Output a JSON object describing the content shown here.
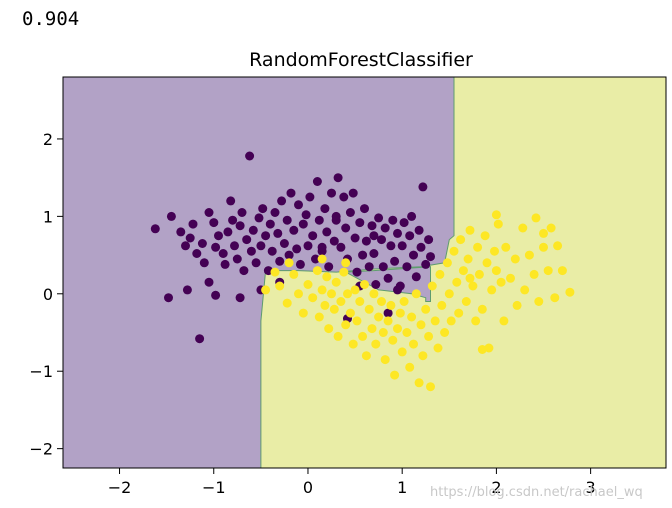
{
  "output": {
    "score_text": "0.904"
  },
  "watermark": "https://blog.csdn.net/rachael_wq",
  "chart_data": {
    "type": "scatter",
    "title": "RandomForestClassifier",
    "xlabel": "",
    "ylabel": "",
    "xlim": [
      -2.6,
      3.8
    ],
    "ylim": [
      -2.25,
      2.8
    ],
    "xticks": [
      -2,
      -1,
      0,
      1,
      2,
      3
    ],
    "yticks": [
      -2,
      -1,
      0,
      1,
      2
    ],
    "xtick_labels": [
      "−2",
      "−1",
      "0",
      "1",
      "2",
      "3"
    ],
    "ytick_labels": [
      "−2",
      "−1",
      "0",
      "1",
      "2"
    ],
    "grid": false,
    "colors": {
      "class_0_region": "#b2a2c6",
      "class_1_region": "#e9eda6",
      "boundary": "#5e9c6e",
      "class_0_point": "#440154",
      "class_1_point": "#fde725"
    },
    "decision_regions": {
      "class_1_polygon": [
        [
          -0.5,
          -2.25
        ],
        [
          -0.5,
          -0.35
        ],
        [
          -0.45,
          0.3
        ],
        [
          -0.1,
          0.3
        ],
        [
          0.3,
          0.28
        ],
        [
          0.5,
          0.3
        ],
        [
          0.7,
          0.32
        ],
        [
          1.2,
          0.35
        ],
        [
          1.45,
          0.4
        ],
        [
          1.5,
          0.7
        ],
        [
          1.55,
          0.75
        ],
        [
          1.55,
          2.8
        ],
        [
          3.8,
          2.8
        ],
        [
          3.8,
          -2.25
        ]
      ],
      "class_0_notch": [
        [
          0.4,
          0.28
        ],
        [
          0.6,
          0.15
        ],
        [
          0.75,
          0.05
        ],
        [
          1.1,
          0.0
        ],
        [
          1.25,
          -0.05
        ],
        [
          1.25,
          -0.1
        ],
        [
          1.3,
          -0.1
        ],
        [
          1.3,
          0.35
        ],
        [
          0.7,
          0.3
        ]
      ]
    },
    "series": [
      {
        "class": 0,
        "points": [
          [
            -1.62,
            0.84
          ],
          [
            -1.45,
            1.0
          ],
          [
            -1.35,
            0.8
          ],
          [
            -1.3,
            0.62
          ],
          [
            -1.25,
            0.72
          ],
          [
            -1.22,
            0.9
          ],
          [
            -1.18,
            0.52
          ],
          [
            -1.12,
            0.65
          ],
          [
            -1.1,
            0.4
          ],
          [
            -1.05,
            1.05
          ],
          [
            -1.0,
            0.92
          ],
          [
            -0.98,
            0.6
          ],
          [
            -0.95,
            0.75
          ],
          [
            -0.9,
            0.52
          ],
          [
            -0.88,
            0.38
          ],
          [
            -0.85,
            0.8
          ],
          [
            -0.82,
            1.2
          ],
          [
            -0.8,
            0.95
          ],
          [
            -0.78,
            0.62
          ],
          [
            -0.75,
            0.45
          ],
          [
            -0.72,
            0.88
          ],
          [
            -0.7,
            1.05
          ],
          [
            -0.68,
            0.3
          ],
          [
            -0.65,
            0.7
          ],
          [
            -0.62,
            1.78
          ],
          [
            -0.6,
            0.55
          ],
          [
            -0.58,
            0.82
          ],
          [
            -0.55,
            0.4
          ],
          [
            -0.52,
            0.98
          ],
          [
            -0.5,
            0.62
          ],
          [
            -0.48,
            1.1
          ],
          [
            -0.45,
            0.75
          ],
          [
            -0.42,
            0.3
          ],
          [
            -0.4,
            0.9
          ],
          [
            -0.38,
            0.55
          ],
          [
            -0.35,
            1.05
          ],
          [
            -0.32,
            0.78
          ],
          [
            -0.3,
            0.42
          ],
          [
            -0.28,
            1.2
          ],
          [
            -0.25,
            0.65
          ],
          [
            -0.22,
            0.95
          ],
          [
            -0.2,
            0.5
          ],
          [
            -0.18,
            1.3
          ],
          [
            -0.15,
            0.82
          ],
          [
            -0.12,
            0.58
          ],
          [
            -0.1,
            1.15
          ],
          [
            -0.08,
            0.38
          ],
          [
            -0.05,
            0.9
          ],
          [
            -0.02,
            1.02
          ],
          [
            0.0,
            0.62
          ],
          [
            0.02,
            1.25
          ],
          [
            0.05,
            0.75
          ],
          [
            0.08,
            0.45
          ],
          [
            0.1,
            1.45
          ],
          [
            0.12,
            0.95
          ],
          [
            0.15,
            0.55
          ],
          [
            0.18,
            1.1
          ],
          [
            0.2,
            0.8
          ],
          [
            0.22,
            0.35
          ],
          [
            0.25,
            1.3
          ],
          [
            0.28,
            0.68
          ],
          [
            0.3,
            0.95
          ],
          [
            0.32,
            1.5
          ],
          [
            0.35,
            0.6
          ],
          [
            0.38,
            1.25
          ],
          [
            0.4,
            0.85
          ],
          [
            0.42,
            0.45
          ],
          [
            0.45,
            1.05
          ],
          [
            0.48,
            1.3
          ],
          [
            0.5,
            0.72
          ],
          [
            0.52,
            0.28
          ],
          [
            0.55,
            0.92
          ],
          [
            0.58,
            0.5
          ],
          [
            0.6,
            1.1
          ],
          [
            0.62,
            0.68
          ],
          [
            0.65,
            0.35
          ],
          [
            0.68,
            0.88
          ],
          [
            0.7,
            0.52
          ],
          [
            0.72,
            0.12
          ],
          [
            0.75,
            0.98
          ],
          [
            0.78,
            0.7
          ],
          [
            0.8,
            0.35
          ],
          [
            0.82,
            0.85
          ],
          [
            0.85,
            0.2
          ],
          [
            0.88,
            0.62
          ],
          [
            0.9,
            0.95
          ],
          [
            0.92,
            0.42
          ],
          [
            0.95,
            0.78
          ],
          [
            0.98,
            0.1
          ],
          [
            1.0,
            0.62
          ],
          [
            1.02,
            0.92
          ],
          [
            1.05,
            0.35
          ],
          [
            1.08,
            0.75
          ],
          [
            1.1,
            1.0
          ],
          [
            1.12,
            0.5
          ],
          [
            1.15,
            0.22
          ],
          [
            1.18,
            0.82
          ],
          [
            1.2,
            0.6
          ],
          [
            1.22,
            1.38
          ],
          [
            1.25,
            0.38
          ],
          [
            1.28,
            0.7
          ],
          [
            1.3,
            0.48
          ],
          [
            -0.3,
            0.15
          ],
          [
            -0.5,
            0.05
          ],
          [
            -1.48,
            -0.05
          ],
          [
            -1.15,
            -0.58
          ],
          [
            -0.72,
            -0.05
          ],
          [
            -0.98,
            -0.02
          ],
          [
            0.42,
            -0.32
          ],
          [
            0.85,
            -0.25
          ],
          [
            0.55,
            0.1
          ],
          [
            0.95,
            0.05
          ],
          [
            -1.28,
            0.05
          ],
          [
            -1.05,
            0.15
          ],
          [
            0.15,
            0.6
          ],
          [
            0.7,
            0.75
          ],
          [
            0.3,
            1.0
          ]
        ]
      },
      {
        "class": 1,
        "points": [
          [
            -0.45,
            0.05
          ],
          [
            -0.35,
            0.28
          ],
          [
            -0.3,
            0.1
          ],
          [
            -0.22,
            -0.12
          ],
          [
            -0.15,
            0.25
          ],
          [
            -0.1,
            0.0
          ],
          [
            -0.05,
            -0.25
          ],
          [
            0.0,
            0.12
          ],
          [
            0.05,
            -0.05
          ],
          [
            0.1,
            0.3
          ],
          [
            0.12,
            -0.3
          ],
          [
            0.15,
            0.05
          ],
          [
            0.18,
            -0.15
          ],
          [
            0.2,
            0.22
          ],
          [
            0.22,
            -0.45
          ],
          [
            0.25,
            0.0
          ],
          [
            0.28,
            -0.2
          ],
          [
            0.3,
            0.15
          ],
          [
            0.32,
            -0.55
          ],
          [
            0.35,
            -0.1
          ],
          [
            0.38,
            0.28
          ],
          [
            0.4,
            -0.4
          ],
          [
            0.42,
            0.0
          ],
          [
            0.45,
            -0.25
          ],
          [
            0.48,
            -0.65
          ],
          [
            0.5,
            0.05
          ],
          [
            0.52,
            -0.35
          ],
          [
            0.55,
            -0.1
          ],
          [
            0.58,
            -0.55
          ],
          [
            0.6,
            0.12
          ],
          [
            0.62,
            -0.8
          ],
          [
            0.65,
            -0.2
          ],
          [
            0.68,
            -0.45
          ],
          [
            0.7,
            0.0
          ],
          [
            0.72,
            -0.65
          ],
          [
            0.75,
            -0.3
          ],
          [
            0.78,
            -0.1
          ],
          [
            0.8,
            -0.5
          ],
          [
            0.82,
            -0.85
          ],
          [
            0.85,
            -0.35
          ],
          [
            0.88,
            -0.15
          ],
          [
            0.9,
            -0.6
          ],
          [
            0.92,
            -1.05
          ],
          [
            0.95,
            -0.45
          ],
          [
            0.98,
            -0.25
          ],
          [
            1.0,
            -0.75
          ],
          [
            1.02,
            -0.1
          ],
          [
            1.05,
            -0.5
          ],
          [
            1.08,
            -0.95
          ],
          [
            1.1,
            -0.3
          ],
          [
            1.12,
            -0.65
          ],
          [
            1.15,
            0.0
          ],
          [
            1.18,
            -1.15
          ],
          [
            1.2,
            -0.4
          ],
          [
            1.22,
            -0.8
          ],
          [
            1.25,
            -0.2
          ],
          [
            1.28,
            -0.55
          ],
          [
            1.3,
            -1.2
          ],
          [
            1.32,
            0.1
          ],
          [
            1.35,
            -0.35
          ],
          [
            1.38,
            -0.7
          ],
          [
            1.4,
            0.25
          ],
          [
            1.42,
            -0.15
          ],
          [
            1.45,
            -0.5
          ],
          [
            1.48,
            0.4
          ],
          [
            1.5,
            0.0
          ],
          [
            1.52,
            -0.35
          ],
          [
            1.55,
            0.55
          ],
          [
            1.58,
            0.15
          ],
          [
            1.6,
            -0.25
          ],
          [
            1.62,
            0.7
          ],
          [
            1.65,
            0.3
          ],
          [
            1.68,
            -0.1
          ],
          [
            1.7,
            0.45
          ],
          [
            1.72,
            0.82
          ],
          [
            1.75,
            0.1
          ],
          [
            1.78,
            -0.35
          ],
          [
            1.8,
            0.6
          ],
          [
            1.82,
            0.25
          ],
          [
            1.85,
            -0.2
          ],
          [
            1.88,
            0.75
          ],
          [
            1.9,
            0.4
          ],
          [
            1.92,
            -0.7
          ],
          [
            1.95,
            0.05
          ],
          [
            1.98,
            0.55
          ],
          [
            2.0,
            0.3
          ],
          [
            2.02,
            0.9
          ],
          [
            2.05,
            0.15
          ],
          [
            2.08,
            -0.35
          ],
          [
            2.1,
            0.6
          ],
          [
            2.15,
            0.2
          ],
          [
            2.2,
            0.45
          ],
          [
            2.22,
            -0.15
          ],
          [
            2.28,
            0.85
          ],
          [
            2.3,
            0.05
          ],
          [
            2.35,
            0.5
          ],
          [
            2.4,
            0.25
          ],
          [
            2.42,
            0.98
          ],
          [
            2.45,
            -0.1
          ],
          [
            2.5,
            0.6
          ],
          [
            2.55,
            0.3
          ],
          [
            2.58,
            0.85
          ],
          [
            2.62,
            -0.05
          ],
          [
            2.65,
            0.62
          ],
          [
            2.7,
            0.3
          ],
          [
            2.78,
            0.02
          ],
          [
            2.5,
            0.78
          ],
          [
            2.0,
            1.02
          ],
          [
            1.85,
            -0.72
          ],
          [
            1.72,
            0.2
          ],
          [
            0.4,
            0.4
          ],
          [
            0.15,
            0.45
          ],
          [
            -0.2,
            0.4
          ]
        ]
      }
    ]
  }
}
